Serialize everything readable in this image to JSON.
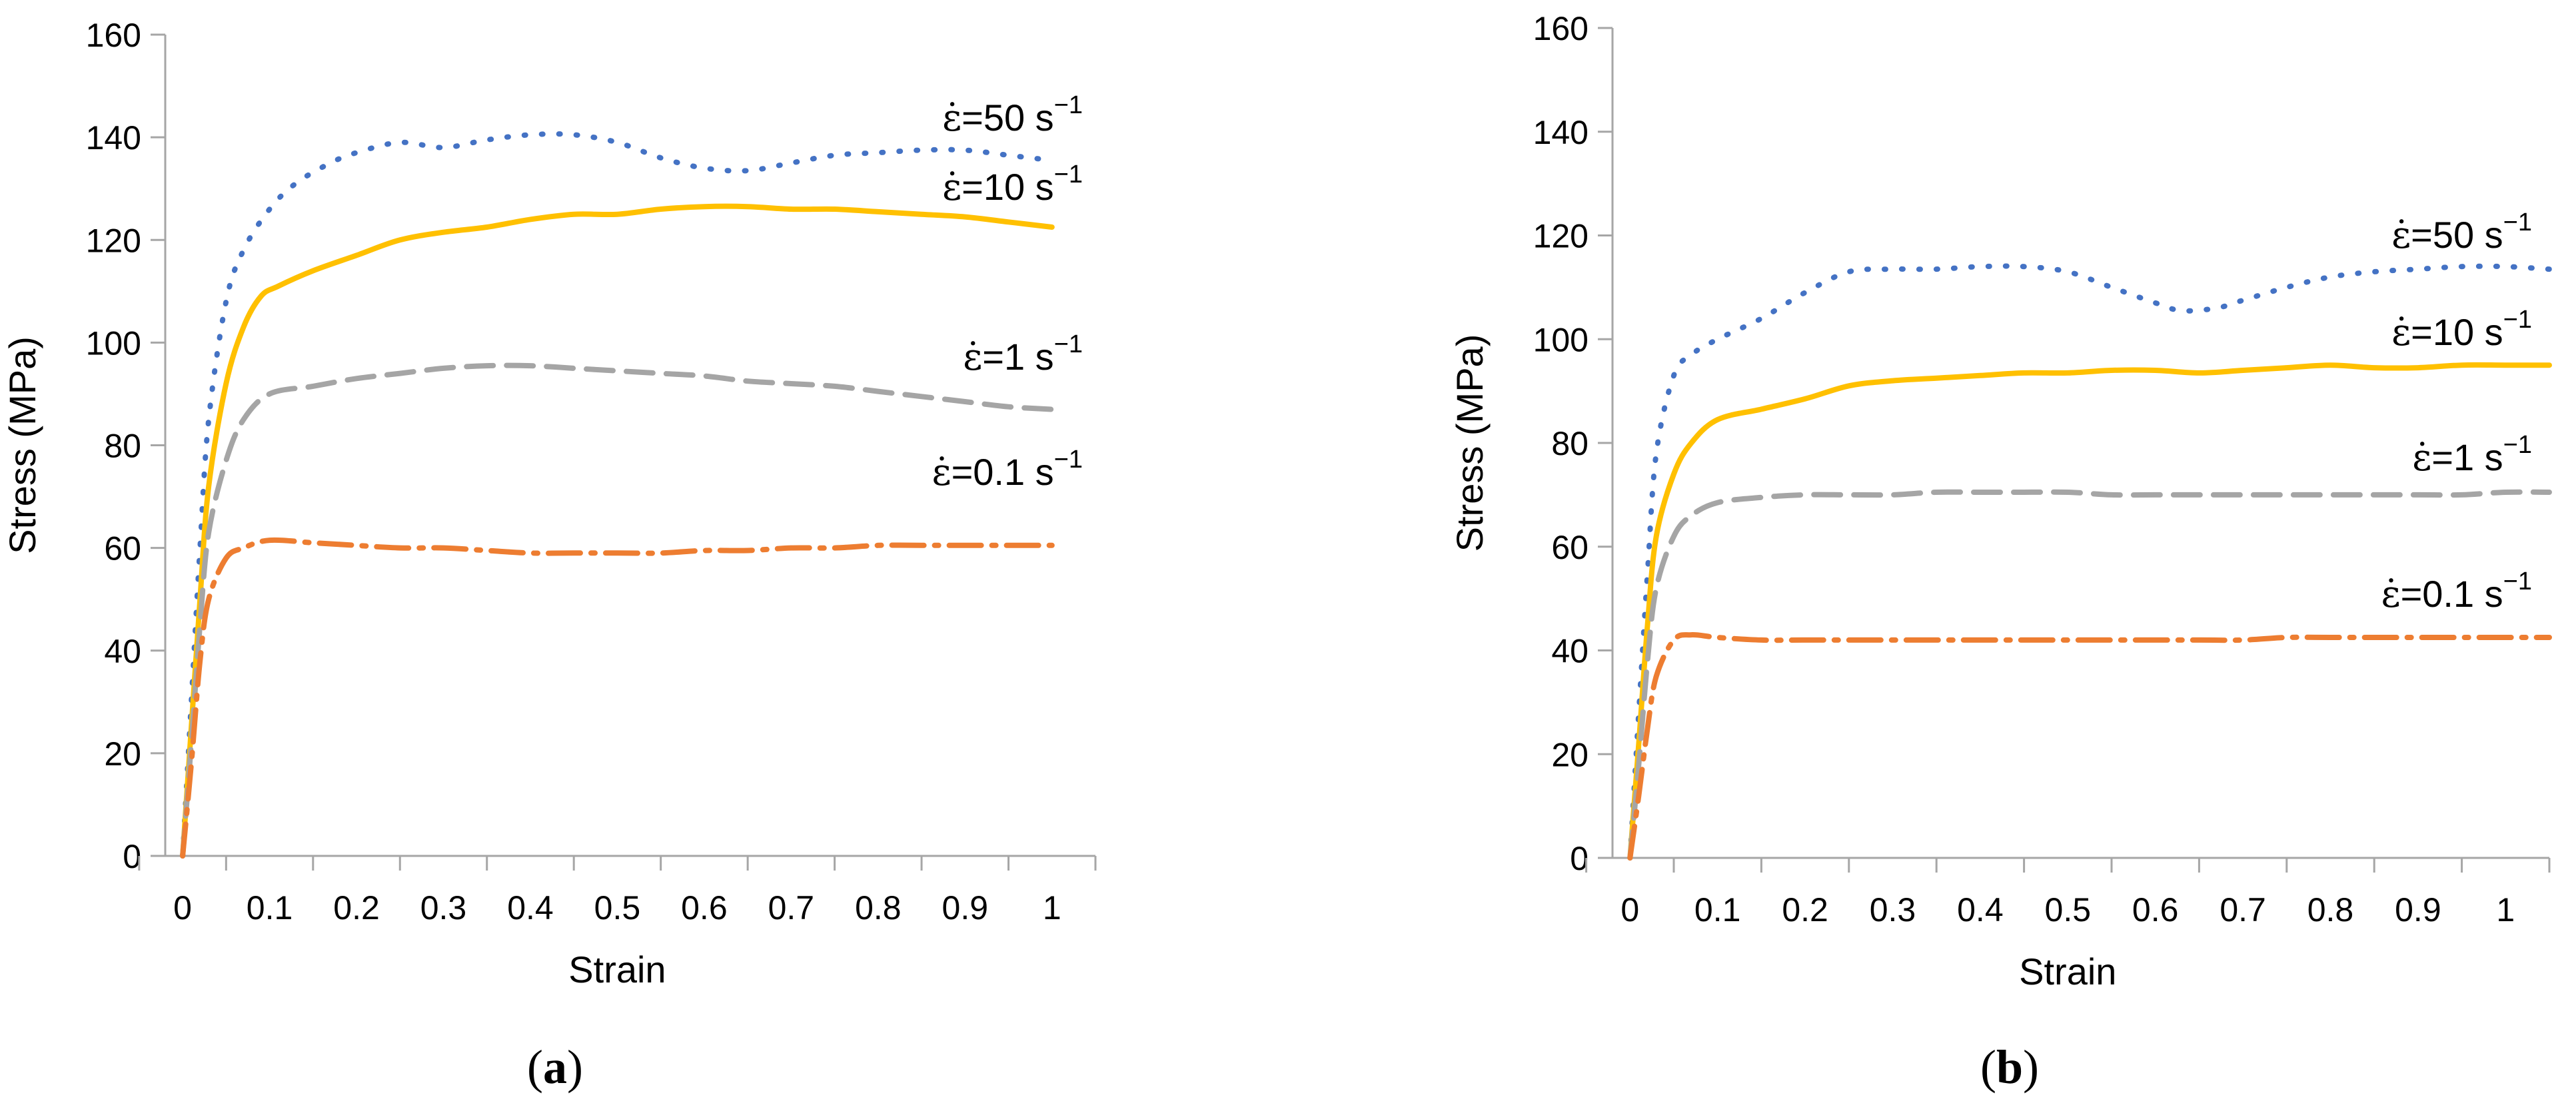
{
  "figure": {
    "panels": [
      {
        "label_open": "(",
        "label_letter": "a",
        "label_close": ")"
      },
      {
        "label_open": "(",
        "label_letter": "b",
        "label_close": ")"
      }
    ]
  },
  "chart_data": [
    {
      "type": "line",
      "panel": "a",
      "title": "",
      "xlabel": "Strain",
      "ylabel": "Stress (MPa)",
      "xlim": [
        -0.02,
        1.05
      ],
      "ylim": [
        0,
        160
      ],
      "xticks": [
        0,
        0.1,
        0.2,
        0.3,
        0.4,
        0.5,
        0.6,
        0.7,
        0.8,
        0.9,
        1
      ],
      "xtick_labels": [
        "0",
        "0.1",
        "0.2",
        "0.3",
        "0.4",
        "0.5",
        "0.6",
        "0.7",
        "0.8",
        "0.9",
        "1"
      ],
      "yticks": [
        0,
        20,
        40,
        60,
        80,
        100,
        120,
        140,
        160
      ],
      "ytick_labels": [
        "0",
        "20",
        "40",
        "60",
        "80",
        "100",
        "120",
        "140",
        "160"
      ],
      "grid": false,
      "legend": "inline labels at right end of each curve",
      "series": [
        {
          "name": "50 s-1",
          "label_pre": "=50 s",
          "label_exp": "−1",
          "color": "#4472C4",
          "dash": "dotted",
          "x": [
            0,
            0.01,
            0.02,
            0.03,
            0.05,
            0.07,
            0.1,
            0.13,
            0.17,
            0.2,
            0.25,
            0.3,
            0.35,
            0.4,
            0.45,
            0.5,
            0.55,
            0.6,
            0.65,
            0.7,
            0.75,
            0.8,
            0.85,
            0.9,
            0.95,
            1.0
          ],
          "y": [
            0,
            30,
            60,
            85,
            108,
            118,
            126,
            131,
            135,
            137,
            139,
            138,
            139.5,
            140.5,
            140.5,
            139,
            136,
            134,
            133.5,
            135,
            136.5,
            137,
            137.5,
            137.5,
            136.5,
            135.5
          ]
        },
        {
          "name": "10 s-1",
          "label_pre": "=10 s",
          "label_exp": "−1",
          "color": "#FFC000",
          "dash": "solid",
          "x": [
            0,
            0.01,
            0.02,
            0.03,
            0.05,
            0.07,
            0.09,
            0.11,
            0.15,
            0.2,
            0.25,
            0.3,
            0.35,
            0.4,
            0.45,
            0.5,
            0.55,
            0.6,
            0.65,
            0.7,
            0.75,
            0.8,
            0.85,
            0.9,
            0.95,
            1.0
          ],
          "y": [
            0,
            25,
            50,
            72,
            92,
            103,
            109,
            111,
            114,
            117,
            120,
            121.5,
            122.5,
            124,
            125,
            125,
            126,
            126.5,
            126.5,
            126,
            126,
            125.5,
            125,
            124.5,
            123.5,
            122.5
          ]
        },
        {
          "name": "1 s-1",
          "label_pre": "=1 s",
          "label_exp": "−1",
          "color": "#A5A5A5",
          "dash": "dashed",
          "x": [
            0,
            0.01,
            0.02,
            0.03,
            0.05,
            0.07,
            0.1,
            0.15,
            0.2,
            0.25,
            0.3,
            0.35,
            0.4,
            0.45,
            0.5,
            0.55,
            0.6,
            0.65,
            0.7,
            0.75,
            0.8,
            0.85,
            0.9,
            0.95,
            1.0
          ],
          "y": [
            0,
            22,
            45,
            63,
            77,
            85,
            90,
            91.5,
            93,
            94,
            95,
            95.5,
            95.5,
            95,
            94.5,
            94,
            93.5,
            92.5,
            92,
            91.5,
            90.5,
            89.5,
            88.5,
            87.5,
            87
          ]
        },
        {
          "name": "0.1 s-1",
          "label_pre": "=0.1 s",
          "label_exp": "−1",
          "color": "#ED7D31",
          "dash": "dashdot",
          "x": [
            0,
            0.01,
            0.02,
            0.03,
            0.05,
            0.07,
            0.1,
            0.15,
            0.2,
            0.25,
            0.3,
            0.35,
            0.4,
            0.45,
            0.5,
            0.55,
            0.6,
            0.65,
            0.7,
            0.75,
            0.8,
            0.85,
            0.9,
            0.95,
            1.0
          ],
          "y": [
            0,
            18,
            38,
            50,
            58,
            60,
            61.5,
            61,
            60.5,
            60,
            60,
            59.5,
            59,
            59,
            59,
            59,
            59.5,
            59.5,
            60,
            60,
            60.5,
            60.5,
            60.5,
            60.5,
            60.5
          ]
        }
      ]
    },
    {
      "type": "line",
      "panel": "b",
      "title": "",
      "xlabel": "Strain",
      "ylabel": "Stress (MPa)",
      "xlim": [
        -0.02,
        1.05
      ],
      "ylim": [
        0,
        160
      ],
      "xticks": [
        0,
        0.1,
        0.2,
        0.3,
        0.4,
        0.5,
        0.6,
        0.7,
        0.8,
        0.9,
        1
      ],
      "xtick_labels": [
        "0",
        "0.1",
        "0.2",
        "0.3",
        "0.4",
        "0.5",
        "0.6",
        "0.7",
        "0.8",
        "0.9",
        "1"
      ],
      "yticks": [
        0,
        20,
        40,
        60,
        80,
        100,
        120,
        140,
        160
      ],
      "ytick_labels": [
        "0",
        "20",
        "40",
        "60",
        "80",
        "100",
        "120",
        "140",
        "160"
      ],
      "grid": false,
      "legend": "inline labels at right end of each curve",
      "series": [
        {
          "name": "50 s-1",
          "label_pre": "=50 s",
          "label_exp": "−1",
          "color": "#4472C4",
          "dash": "dotted",
          "x": [
            0,
            0.01,
            0.02,
            0.03,
            0.05,
            0.07,
            0.1,
            0.15,
            0.2,
            0.25,
            0.3,
            0.35,
            0.4,
            0.45,
            0.5,
            0.55,
            0.6,
            0.63,
            0.67,
            0.7,
            0.75,
            0.8,
            0.85,
            0.9,
            0.95,
            1.0,
            1.05
          ],
          "y": [
            0,
            28,
            55,
            78,
            93,
            97,
            100,
            104,
            109,
            113,
            113.5,
            113.5,
            114,
            114,
            113,
            110,
            107,
            105.5,
            106,
            107.5,
            110,
            112,
            113,
            113.5,
            114,
            114,
            113.5
          ]
        },
        {
          "name": "10 s-1",
          "label_pre": "=10 s",
          "label_exp": "−1",
          "color": "#FFC000",
          "dash": "solid",
          "x": [
            0,
            0.01,
            0.02,
            0.03,
            0.05,
            0.07,
            0.1,
            0.15,
            0.2,
            0.25,
            0.3,
            0.35,
            0.4,
            0.45,
            0.5,
            0.55,
            0.6,
            0.65,
            0.7,
            0.75,
            0.8,
            0.85,
            0.9,
            0.95,
            1.0,
            1.05
          ],
          "y": [
            0,
            22,
            45,
            62,
            74,
            80,
            84.5,
            86.5,
            88.5,
            91,
            92,
            92.5,
            93,
            93.5,
            93.5,
            94,
            94,
            93.5,
            94,
            94.5,
            95,
            94.5,
            94.5,
            95,
            95,
            95
          ]
        },
        {
          "name": "1 s-1",
          "label_pre": "=1 s",
          "label_exp": "−1",
          "color": "#A5A5A5",
          "dash": "dashed",
          "x": [
            0,
            0.01,
            0.02,
            0.03,
            0.05,
            0.07,
            0.1,
            0.15,
            0.2,
            0.25,
            0.3,
            0.35,
            0.4,
            0.45,
            0.5,
            0.55,
            0.6,
            0.65,
            0.7,
            0.75,
            0.8,
            0.85,
            0.9,
            0.95,
            1.0,
            1.05
          ],
          "y": [
            0,
            18,
            38,
            52,
            62,
            66,
            68.5,
            69.5,
            70,
            70,
            70,
            70.5,
            70.5,
            70.5,
            70.5,
            70,
            70,
            70,
            70,
            70,
            70,
            70,
            70,
            70,
            70.5,
            70.5
          ]
        },
        {
          "name": "0.1 s-1",
          "label_pre": "=0.1 s",
          "label_exp": "−1",
          "color": "#ED7D31",
          "dash": "dashdot",
          "x": [
            0,
            0.01,
            0.02,
            0.03,
            0.05,
            0.07,
            0.1,
            0.15,
            0.2,
            0.25,
            0.3,
            0.35,
            0.4,
            0.45,
            0.5,
            0.55,
            0.6,
            0.65,
            0.7,
            0.75,
            0.8,
            0.85,
            0.9,
            0.95,
            1.0,
            1.05
          ],
          "y": [
            0,
            12,
            25,
            35,
            42,
            43,
            42.5,
            42,
            42,
            42,
            42,
            42,
            42,
            42,
            42,
            42,
            42,
            42,
            42,
            42.5,
            42.5,
            42.5,
            42.5,
            42.5,
            42.5,
            42.5
          ]
        }
      ]
    }
  ]
}
